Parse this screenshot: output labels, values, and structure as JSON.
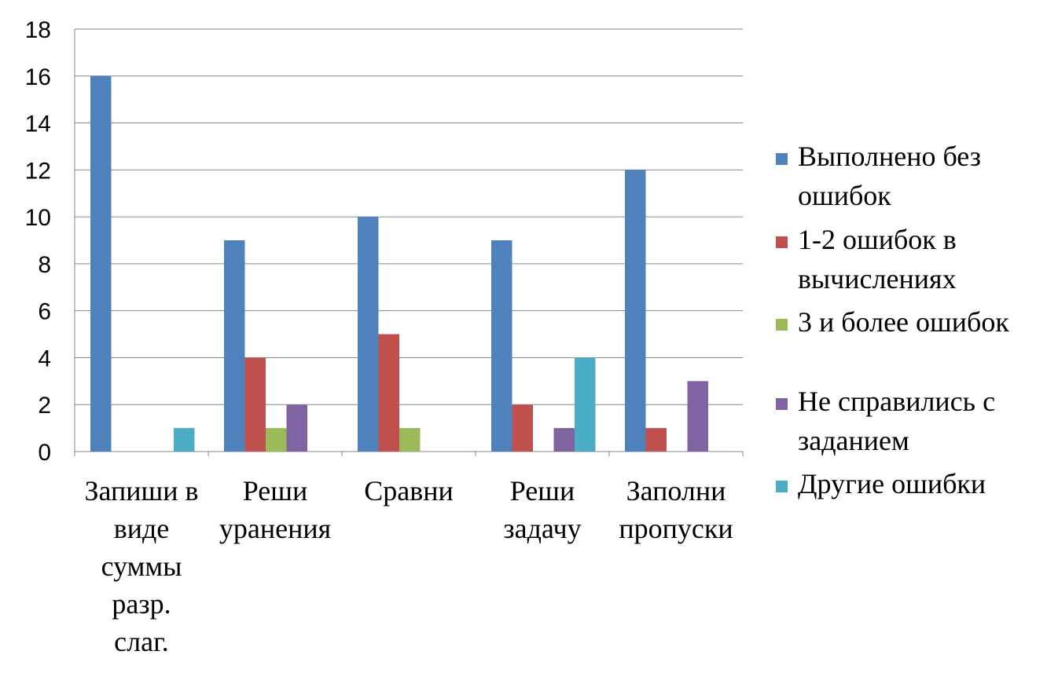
{
  "chart_data": {
    "type": "bar",
    "categories": [
      [
        "Запиши в",
        "виде",
        "суммы",
        "разр.",
        "слаг."
      ],
      [
        "Реши",
        "уранения"
      ],
      [
        "Сравни"
      ],
      [
        "Реши",
        "задачу"
      ],
      [
        "Заполни",
        "пропуски"
      ]
    ],
    "series": [
      {
        "name": [
          "Выполнено без",
          "ошибок"
        ],
        "color": "#4F81BD",
        "values": [
          16,
          9,
          10,
          9,
          12
        ]
      },
      {
        "name": [
          "1-2 ошибок в",
          "вычислениях"
        ],
        "color": "#C0504D",
        "values": [
          0,
          4,
          5,
          2,
          1
        ]
      },
      {
        "name": [
          "3 и более ошибок"
        ],
        "color": "#9BBB59",
        "values": [
          0,
          1,
          1,
          0,
          0
        ]
      },
      {
        "name": [
          "Не справились с",
          "заданием"
        ],
        "color": "#8064A2",
        "values": [
          0,
          2,
          0,
          1,
          3
        ]
      },
      {
        "name": [
          "Другие ошибки"
        ],
        "color": "#4BACC6",
        "values": [
          1,
          0,
          0,
          4,
          0
        ]
      }
    ],
    "ylim": [
      0,
      18
    ],
    "yticks": [
      0,
      2,
      4,
      6,
      8,
      10,
      12,
      14,
      16,
      18
    ],
    "grid": true,
    "legend": "right",
    "title": "",
    "xlabel": "",
    "ylabel": ""
  }
}
